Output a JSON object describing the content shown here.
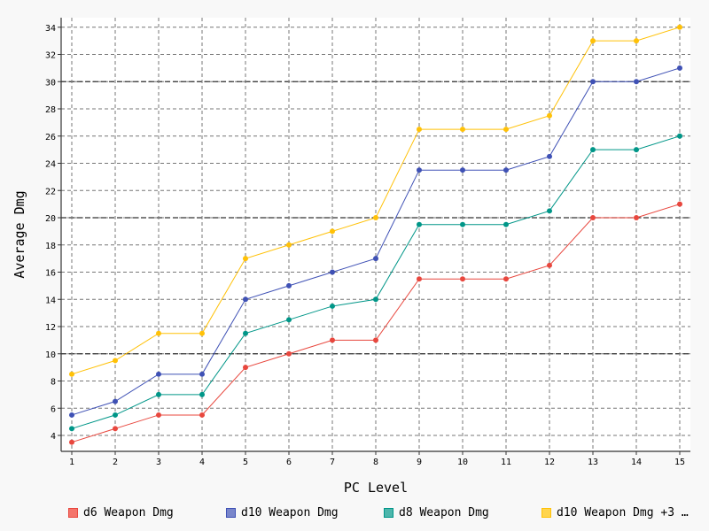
{
  "chart_data": {
    "type": "line",
    "title": "",
    "xlabel": "PC Level",
    "ylabel": "Average Dmg",
    "x": [
      1,
      2,
      3,
      4,
      5,
      6,
      7,
      8,
      9,
      10,
      11,
      12,
      13,
      14,
      15
    ],
    "xlim": [
      1,
      15
    ],
    "ylim": [
      3,
      34
    ],
    "y_ticks": [
      4,
      6,
      8,
      10,
      12,
      14,
      16,
      18,
      20,
      22,
      24,
      26,
      28,
      30,
      32,
      34
    ],
    "y_major_lines": [
      10,
      20,
      30
    ],
    "grid": true,
    "legend_placement": "bottom",
    "series": [
      {
        "name": "d6 Weapon Dmg",
        "color": "#e8473e",
        "swatch_color": "#f4746b",
        "values": [
          3.5,
          4.5,
          5.5,
          5.5,
          9,
          10,
          11,
          11,
          15.5,
          15.5,
          15.5,
          16.5,
          20,
          20,
          21
        ]
      },
      {
        "name": "d10 Weapon Dmg",
        "color": "#3f51b5",
        "swatch_color": "#7986cb",
        "values": [
          5.5,
          6.5,
          8.5,
          8.5,
          14,
          15,
          16,
          17,
          23.5,
          23.5,
          23.5,
          24.5,
          30,
          30,
          31
        ]
      },
      {
        "name": "d8 Weapon Dmg",
        "color": "#009688",
        "swatch_color": "#4db6ac",
        "values": [
          4.5,
          5.5,
          7,
          7,
          11.5,
          12.5,
          13.5,
          14,
          19.5,
          19.5,
          19.5,
          20.5,
          25,
          25,
          26
        ]
      },
      {
        "name": "d10 Weapon Dmg +3 …",
        "color": "#ffc107",
        "swatch_color": "#ffd54f",
        "values": [
          8.5,
          9.5,
          11.5,
          11.5,
          17,
          18,
          19,
          20,
          26.5,
          26.5,
          26.5,
          27.5,
          33,
          33,
          34
        ]
      }
    ]
  }
}
